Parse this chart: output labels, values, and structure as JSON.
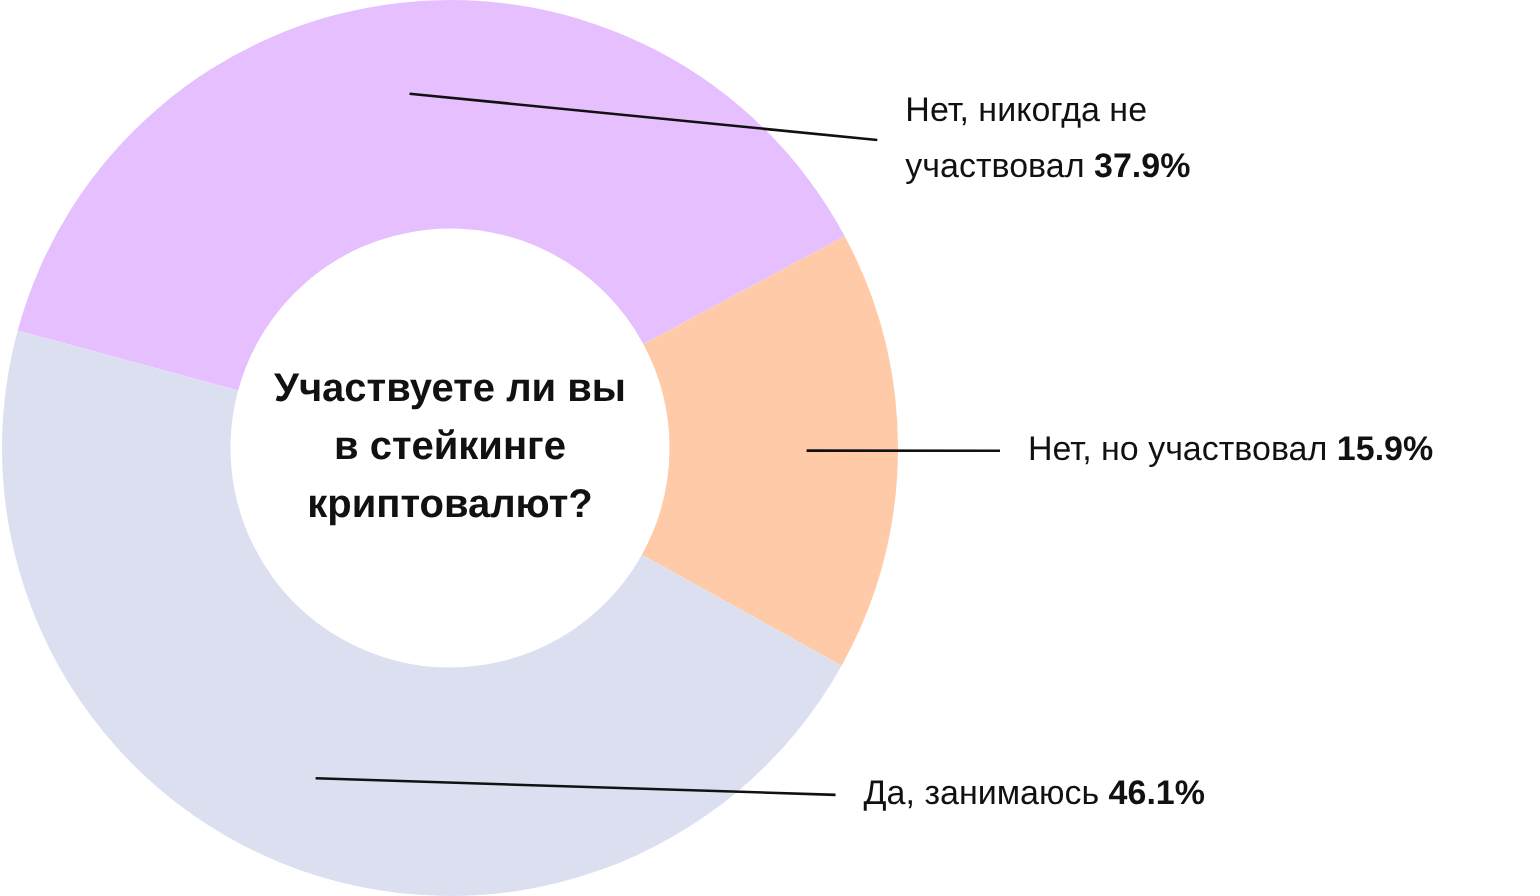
{
  "chart_data": {
    "type": "donut",
    "title": "Участвуете ли вы в стейкинге криптовалют?",
    "categories": [
      "Нет, никогда не участвовал",
      "Нет, но участвовал",
      "Да, занимаюсь"
    ],
    "values": [
      37.9,
      15.9,
      46.1
    ],
    "value_labels": [
      "37.9%",
      "15.9%",
      "46.1%"
    ],
    "colors": [
      "#e6bffe",
      "#ffcaa8",
      "#dcdff0"
    ],
    "legend": false
  }
}
